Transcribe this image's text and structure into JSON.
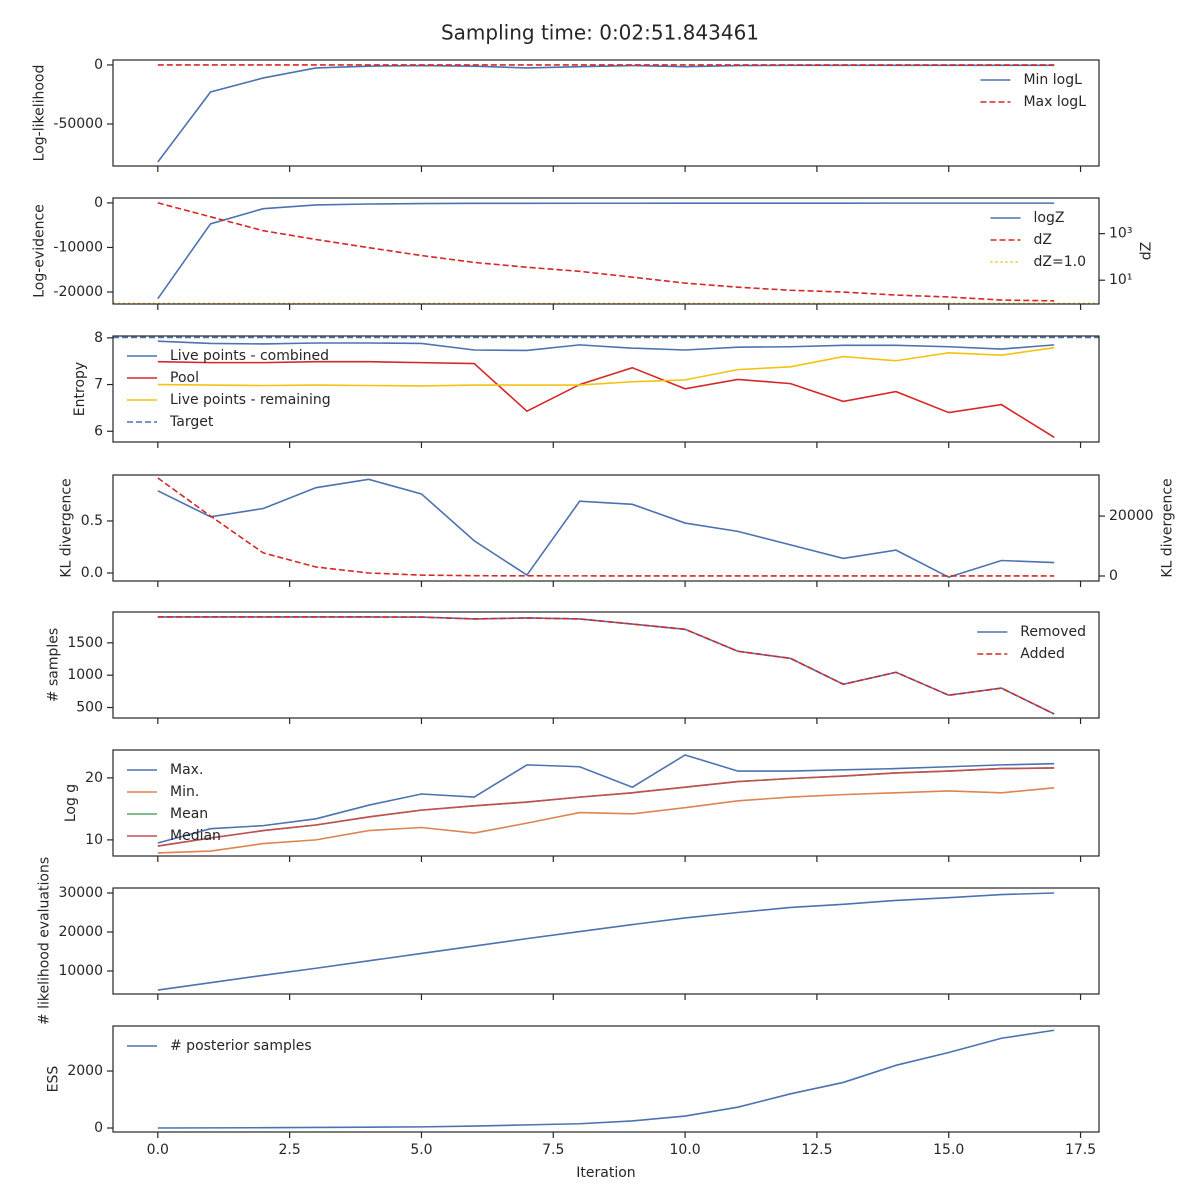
{
  "title": "Sampling time: 0:02:51.843461",
  "xlabel": "Iteration",
  "x": [
    0,
    1,
    2,
    3,
    4,
    5,
    6,
    7,
    8,
    9,
    10,
    11,
    12,
    13,
    14,
    15,
    16,
    17
  ],
  "xlim": [
    -0.85,
    17.85
  ],
  "xticks": [
    {
      "value": 0,
      "label": "0.0"
    },
    {
      "value": 2.5,
      "label": "2.5"
    },
    {
      "value": 5,
      "label": "5.0"
    },
    {
      "value": 7.5,
      "label": "7.5"
    },
    {
      "value": 10,
      "label": "10.0"
    },
    {
      "value": 12.5,
      "label": "12.5"
    },
    {
      "value": 15,
      "label": "15.0"
    },
    {
      "value": 17.5,
      "label": "17.5"
    }
  ],
  "chart_data": [
    {
      "type": "line",
      "ylabel": "Log-likelihood",
      "ylim": [
        -85600,
        4200
      ],
      "yticks": [
        -50000,
        0
      ],
      "legend": "upper right",
      "series": [
        {
          "name": "Min logL",
          "color": "#4c72b0",
          "linestyle": "solid",
          "values": [
            -82200,
            -22900,
            -11000,
            -2500,
            -1000,
            -500,
            -1000,
            -2500,
            -1500,
            -500,
            -1500,
            -500,
            -300,
            -300,
            -300,
            -300,
            -300,
            -300
          ]
        },
        {
          "name": "Max logL",
          "color": "#d62728",
          "linestyle": "dashed",
          "values": [
            0,
            0,
            0,
            0,
            0,
            0,
            0,
            0,
            0,
            0,
            0,
            0,
            0,
            0,
            0,
            0,
            0,
            0
          ]
        }
      ]
    },
    {
      "type": "line",
      "ylabel": "Log-evidence",
      "ylim": [
        -22700,
        1100
      ],
      "yticks": [
        -20000,
        -10000,
        0
      ],
      "y2label": "dZ",
      "y2scale": "log",
      "y2lim": [
        0.95,
        34000
      ],
      "y2ticks": [
        {
          "value": 10,
          "label": "10¹"
        },
        {
          "value": 1000,
          "label": "10³"
        }
      ],
      "legend": "upper right",
      "series": [
        {
          "name": "logZ",
          "color": "#4c72b0",
          "linestyle": "solid",
          "values": [
            -21500,
            -4700,
            -1300,
            -450,
            -250,
            -150,
            -100,
            -100,
            -80,
            -80,
            -70,
            -60,
            -60,
            -60,
            -50,
            -50,
            -50,
            -50
          ]
        },
        {
          "name": "dZ",
          "color": "#d62728",
          "linestyle": "dashed",
          "axis": "y2",
          "values": [
            21000,
            5300,
            1340,
            560,
            250,
            115,
            58,
            36,
            24,
            13.5,
            7.5,
            5,
            3.7,
            3.1,
            2.3,
            1.9,
            1.4,
            1.3
          ]
        }
      ],
      "hlines": [
        {
          "name": "dZ=1.0",
          "color": "#f5c211",
          "linestyle": "dotted",
          "axis": "y2",
          "value": 1.0
        }
      ]
    },
    {
      "type": "line",
      "ylabel": "Entropy",
      "ylim": [
        5.77,
        8.04
      ],
      "yticks": [
        6,
        7,
        8
      ],
      "legend": "upper left",
      "series": [
        {
          "name": "Live points - combined",
          "color": "#4c72b0",
          "linestyle": "solid",
          "values": [
            7.93,
            7.88,
            7.87,
            7.89,
            7.89,
            7.88,
            7.74,
            7.73,
            7.85,
            7.78,
            7.74,
            7.8,
            7.81,
            7.84,
            7.84,
            7.81,
            7.76,
            7.85
          ]
        },
        {
          "name": "Pool",
          "color": "#d62728",
          "linestyle": "solid",
          "values": [
            7.49,
            7.47,
            7.47,
            7.49,
            7.49,
            7.47,
            7.45,
            6.43,
            7.0,
            7.36,
            6.91,
            7.11,
            7.02,
            6.64,
            6.85,
            6.4,
            6.57,
            5.87
          ]
        },
        {
          "name": "Live points - remaining",
          "color": "#f5c211",
          "linestyle": "solid",
          "values": [
            7.0,
            6.99,
            6.98,
            6.99,
            6.98,
            6.97,
            6.99,
            6.99,
            6.99,
            7.06,
            7.1,
            7.32,
            7.38,
            7.6,
            7.51,
            7.68,
            7.63,
            7.79
          ]
        }
      ],
      "hlines": [
        {
          "name": "Target",
          "color": "#4c72b0",
          "linestyle": "dashed",
          "value": 8.01
        }
      ]
    },
    {
      "type": "line",
      "ylabel": "KL divergence",
      "ylim": [
        -0.077,
        0.942
      ],
      "yticks": [
        {
          "value": 0,
          "label": "0.0"
        },
        0.5
      ],
      "y2label": "KL divergence",
      "y2lim": [
        -1670,
        33700
      ],
      "y2ticks": [
        0,
        20000
      ],
      "series": [
        {
          "color": "#4c72b0",
          "linestyle": "solid",
          "values": [
            0.79,
            0.54,
            0.62,
            0.82,
            0.9,
            0.76,
            0.31,
            -0.02,
            0.69,
            0.66,
            0.48,
            0.4,
            0.27,
            0.14,
            0.22,
            -0.04,
            0.12,
            0.1
          ]
        },
        {
          "color": "#d62728",
          "linestyle": "dashed",
          "axis": "y2",
          "values": [
            32700,
            20000,
            7700,
            3000,
            1000,
            300,
            100,
            50,
            40,
            30,
            20,
            20,
            10,
            10,
            10,
            10,
            10,
            10
          ]
        }
      ]
    },
    {
      "type": "line",
      "ylabel": "# samples",
      "ylim": [
        338,
        1977
      ],
      "yticks": [
        500,
        1000,
        1500
      ],
      "legend": "upper right",
      "series": [
        {
          "name": "Removed",
          "color": "#4c72b0",
          "linestyle": "solid",
          "values": [
            1900,
            1900,
            1900,
            1900,
            1900,
            1898,
            1870,
            1885,
            1870,
            1790,
            1710,
            1370,
            1260,
            860,
            1045,
            690,
            800,
            400
          ]
        },
        {
          "name": "Added",
          "color": "#d62728",
          "linestyle": "dashed",
          "values": [
            1900,
            1900,
            1900,
            1900,
            1900,
            1898,
            1870,
            1885,
            1870,
            1790,
            1710,
            1370,
            1260,
            860,
            1045,
            690,
            800,
            400
          ]
        }
      ]
    },
    {
      "type": "line",
      "ylabel": "Log g",
      "ylim": [
        7.4,
        24.5
      ],
      "yticks": [
        10,
        20
      ],
      "legend": "upper left",
      "series": [
        {
          "name": "Max.",
          "color": "#4c72b0",
          "linestyle": "solid",
          "values": [
            9.5,
            11.8,
            12.3,
            13.4,
            15.6,
            17.4,
            16.9,
            22.1,
            21.8,
            18.5,
            23.7,
            21.1,
            21.1,
            21.3,
            21.5,
            21.8,
            22.1,
            22.3
          ]
        },
        {
          "name": "Min.",
          "color": "#dd8452",
          "linestyle": "solid",
          "values": [
            7.9,
            8.2,
            9.4,
            10,
            11.5,
            12,
            11.1,
            12.7,
            14.4,
            14.2,
            15.2,
            16.3,
            16.9,
            17.3,
            17.6,
            17.9,
            17.6,
            18.4
          ]
        },
        {
          "name": "Mean",
          "color": "#55a868",
          "linestyle": "solid",
          "values": [
            9,
            10.3,
            11.5,
            12.4,
            13.7,
            14.8,
            15.5,
            16.1,
            16.9,
            17.6,
            18.5,
            19.4,
            19.9,
            20.3,
            20.8,
            21.1,
            21.5,
            21.6
          ]
        },
        {
          "name": "Median",
          "color": "#c44e52",
          "linestyle": "solid",
          "values": [
            9,
            10.3,
            11.5,
            12.4,
            13.7,
            14.8,
            15.5,
            16.1,
            16.9,
            17.6,
            18.5,
            19.4,
            19.9,
            20.3,
            20.8,
            21.1,
            21.5,
            21.6
          ]
        }
      ]
    },
    {
      "type": "line",
      "ylabel": "# likelihood evaluations",
      "ylim": [
        4100,
        31280
      ],
      "yticks": [
        10000,
        20000,
        30000
      ],
      "series": [
        {
          "color": "#4c72b0",
          "linestyle": "solid",
          "values": [
            5100,
            7000,
            8900,
            10700,
            12600,
            14500,
            16400,
            18300,
            20100,
            21900,
            23600,
            25000,
            26300,
            27100,
            28100,
            28800,
            29600,
            30000
          ]
        }
      ]
    },
    {
      "type": "line",
      "ylabel": "ESS",
      "ylim": [
        -140,
        3580
      ],
      "yticks": [
        0,
        2000
      ],
      "legend": "upper left",
      "series": [
        {
          "name": "# posterior samples",
          "color": "#4c72b0",
          "linestyle": "solid",
          "values": [
            0,
            5,
            10,
            20,
            30,
            40,
            70,
            110,
            150,
            250,
            420,
            730,
            1200,
            1600,
            2200,
            2650,
            3150,
            3430
          ]
        }
      ]
    }
  ]
}
